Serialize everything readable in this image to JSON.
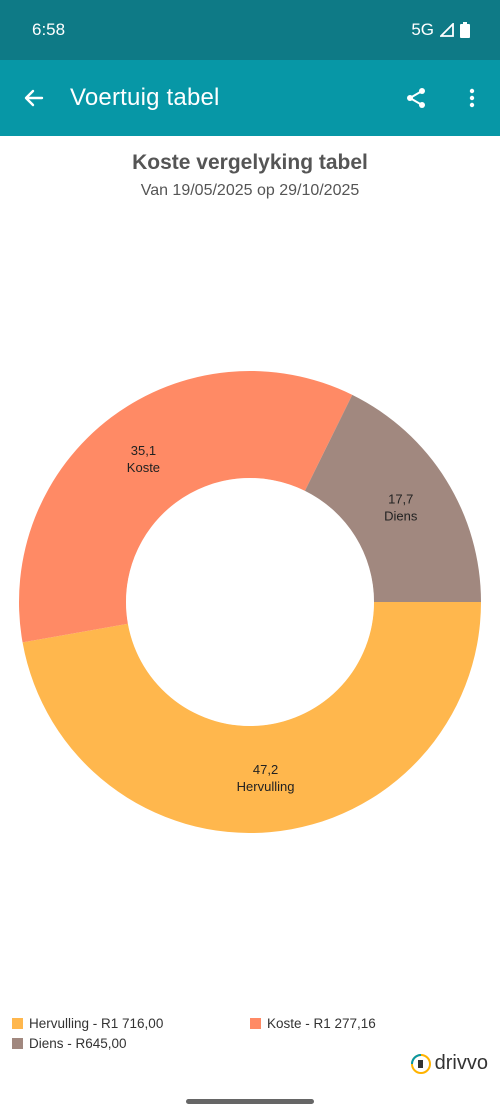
{
  "status": {
    "time": "6:58",
    "network": "5G"
  },
  "app_bar": {
    "title": "Voertuig tabel",
    "back_icon": "arrow-back-icon",
    "share_icon": "share-icon",
    "more_icon": "more-vert-icon"
  },
  "chart_data": {
    "type": "pie",
    "title": "Koste vergelyking tabel",
    "subtitle": "Van 19/05/2025 op 29/10/2025",
    "slices": [
      {
        "name": "Hervulling",
        "value": 47.2,
        "label_value": "47,2",
        "color": "#ffb74d"
      },
      {
        "name": "Koste",
        "value": 35.1,
        "label_value": "35,1",
        "color": "#ff8a65"
      },
      {
        "name": "Diens",
        "value": 17.7,
        "label_value": "17,7",
        "color": "#a1887f"
      }
    ],
    "legend": [
      {
        "text": "Hervulling - R1 716,00",
        "color": "#ffb74d"
      },
      {
        "text": "Koste - R1 277,16",
        "color": "#ff8a65"
      },
      {
        "text": "Diens - R645,00",
        "color": "#a1887f"
      }
    ],
    "legend_position": "bottom"
  },
  "brand": {
    "name": "drivvo"
  }
}
